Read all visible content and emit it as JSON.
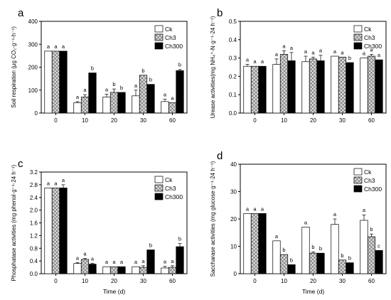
{
  "chart_data": [
    {
      "type": "bar",
      "panel_label": "a",
      "ylabel": "Soil respiration (μg CO₂·g⁻¹·h⁻¹)",
      "xlabel": "",
      "ylim": [
        0,
        400
      ],
      "yticks": [
        0,
        100,
        200,
        300,
        400
      ],
      "categories": [
        "0",
        "10",
        "20",
        "30",
        "60"
      ],
      "legend_position": "top-right",
      "series": [
        {
          "name": "Ck",
          "values": [
            270,
            45,
            70,
            75,
            50
          ],
          "errors": [
            0,
            5,
            12,
            25,
            10
          ],
          "letters": [
            "a",
            "a",
            "a",
            "a",
            "a"
          ]
        },
        {
          "name": "Ch3",
          "values": [
            270,
            70,
            90,
            165,
            45
          ],
          "errors": [
            0,
            10,
            15,
            0,
            0
          ],
          "letters": [
            "a",
            "a",
            "b",
            "b",
            "a"
          ]
        },
        {
          "name": "Ch300",
          "values": [
            270,
            175,
            90,
            125,
            185
          ],
          "errors": [
            0,
            0,
            0,
            0,
            5
          ],
          "letters": [
            "a",
            "b",
            "b",
            "b",
            "b"
          ]
        }
      ]
    },
    {
      "type": "bar",
      "panel_label": "b",
      "ylabel": "Urease activities(mg NH₄⁺-N·g⁻¹·24 h⁻¹)",
      "xlabel": "",
      "ylim": [
        0,
        0.5
      ],
      "yticks": [
        0.0,
        0.1,
        0.2,
        0.3,
        0.4,
        0.5
      ],
      "categories": [
        "0",
        "10",
        "20",
        "30",
        "60"
      ],
      "legend_position": "top-right",
      "series": [
        {
          "name": "Ck",
          "values": [
            0.255,
            0.265,
            0.28,
            0.31,
            0.3
          ],
          "errors": [
            0.01,
            0.03,
            0.03,
            0.0,
            0.0
          ],
          "letters": [
            "a",
            "a",
            "a",
            "a",
            "a"
          ]
        },
        {
          "name": "Ch3",
          "values": [
            0.255,
            0.32,
            0.295,
            0.305,
            0.31
          ],
          "errors": [
            0.0,
            0.02,
            0.01,
            0.0,
            0.01
          ],
          "letters": [
            "a",
            "a",
            "a",
            "a",
            "a"
          ]
        },
        {
          "name": "Ch300",
          "values": [
            0.255,
            0.285,
            0.285,
            0.275,
            0.29
          ],
          "errors": [
            0.0,
            0.045,
            0.03,
            0.0,
            0.0
          ],
          "letters": [
            "a",
            "a",
            "a",
            "b",
            "a"
          ]
        }
      ]
    },
    {
      "type": "bar",
      "panel_label": "c",
      "ylabel": "Phosphatase activities (mg phenol·g⁻¹·24 h⁻¹)",
      "xlabel": "Time (d)",
      "ylim": [
        0,
        3.2
      ],
      "yticks": [
        0.0,
        0.4,
        0.8,
        1.2,
        1.6,
        2.0,
        2.4,
        2.8,
        3.2
      ],
      "categories": [
        "0",
        "10",
        "20",
        "30",
        "60"
      ],
      "legend_position": "top-right",
      "series": [
        {
          "name": "Ck",
          "values": [
            2.7,
            0.32,
            0.22,
            0.22,
            0.18
          ],
          "errors": [
            0.0,
            0.03,
            0.0,
            0.0,
            0.05
          ],
          "letters": [
            "a",
            "a",
            "a",
            "a",
            "a"
          ]
        },
        {
          "name": "Ch3",
          "values": [
            2.7,
            0.45,
            0.22,
            0.2,
            0.2
          ],
          "errors": [
            0.0,
            0.03,
            0.0,
            0.05,
            0.05
          ],
          "letters": [
            "a",
            "a",
            "a",
            "a",
            "a"
          ]
        },
        {
          "name": "Ch300",
          "values": [
            2.7,
            0.3,
            0.22,
            0.75,
            0.85
          ],
          "errors": [
            0.1,
            0.03,
            0.0,
            0.0,
            0.1
          ],
          "letters": [
            "a",
            "a",
            "a",
            "b",
            "b"
          ]
        }
      ]
    },
    {
      "type": "bar",
      "panel_label": "d",
      "ylabel": "Saccharase activities (mg glucose·g⁻¹·24 h⁻¹)",
      "xlabel": "Time (d)",
      "ylim": [
        0,
        40
      ],
      "yticks": [
        0,
        10,
        20,
        30,
        40
      ],
      "categories": [
        "0",
        "10",
        "20",
        "30",
        "60"
      ],
      "legend_position": "top-right",
      "series": [
        {
          "name": "Ck",
          "values": [
            22,
            12,
            17,
            18,
            19.5
          ],
          "errors": [
            0,
            0,
            0,
            2,
            2
          ],
          "letters": [
            "a",
            "a",
            "a",
            "a",
            "a"
          ]
        },
        {
          "name": "Ch3",
          "values": [
            22,
            7,
            7.5,
            5,
            13.5
          ],
          "errors": [
            0,
            0,
            0.5,
            0,
            1
          ],
          "letters": [
            "a",
            "b",
            "b",
            "b",
            "b"
          ]
        },
        {
          "name": "Ch300",
          "values": [
            22,
            3.3,
            7.5,
            4,
            8.5
          ],
          "errors": [
            0,
            0,
            0,
            0,
            0
          ],
          "letters": [
            "a",
            "b",
            "b",
            "b",
            "c"
          ]
        }
      ]
    }
  ]
}
